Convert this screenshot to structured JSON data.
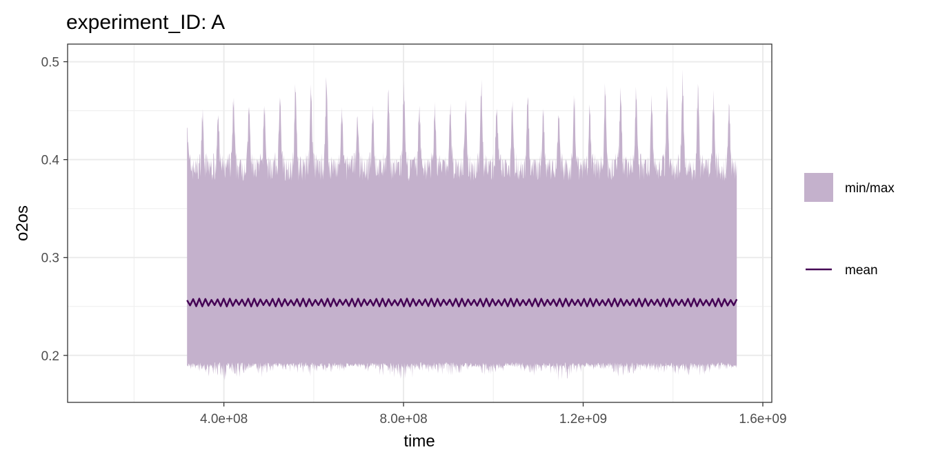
{
  "chart_data": {
    "type": "area",
    "title": "experiment_ID: A",
    "xlabel": "time",
    "ylabel": "o2os",
    "xlim": [
      52000000,
      1620000000
    ],
    "ylim": [
      0.152,
      0.518
    ],
    "xticks": [
      400000000,
      800000000,
      1200000000,
      1600000000
    ],
    "xtick_labels": [
      "4.0e+08",
      "8.0e+08",
      "1.2e+09",
      "1.6e+09"
    ],
    "yticks": [
      0.2,
      0.3,
      0.4,
      0.5
    ],
    "ytick_labels": [
      "0.2",
      "0.3",
      "0.4",
      "0.5"
    ],
    "grid": true,
    "legend_position": "right",
    "x_range": [
      318000000,
      1542000000
    ],
    "ribbon_color": "#c4b1cc",
    "line_color": "#440154",
    "series": [
      {
        "name": "min/max",
        "kind": "ribbon",
        "description_peaks": "daily cycle of ~36 peaks",
        "x": [
          318000000,
          345000000,
          380000000,
          415000000,
          450000000,
          485000000,
          520000000,
          555000000,
          590000000,
          625000000,
          660000000,
          695000000,
          730000000,
          765000000,
          800000000,
          835000000,
          870000000,
          905000000,
          940000000,
          975000000,
          1010000000,
          1045000000,
          1080000000,
          1115000000,
          1150000000,
          1185000000,
          1220000000,
          1255000000,
          1290000000,
          1325000000,
          1360000000,
          1395000000,
          1430000000,
          1465000000,
          1500000000,
          1542000000
        ],
        "ymax": [
          0.44,
          0.455,
          0.45,
          0.47,
          0.462,
          0.46,
          0.47,
          0.485,
          0.48,
          0.497,
          0.455,
          0.45,
          0.455,
          0.478,
          0.482,
          0.46,
          0.46,
          0.46,
          0.465,
          0.487,
          0.458,
          0.465,
          0.475,
          0.455,
          0.455,
          0.475,
          0.46,
          0.488,
          0.478,
          0.48,
          0.465,
          0.487,
          0.495,
          0.48,
          0.468,
          0.462
        ],
        "ymin": [
          0.19,
          0.185,
          0.18,
          0.172,
          0.185,
          0.18,
          0.19,
          0.185,
          0.18,
          0.186,
          0.185,
          0.19,
          0.185,
          0.18,
          0.173,
          0.186,
          0.185,
          0.178,
          0.186,
          0.18,
          0.185,
          0.19,
          0.18,
          0.186,
          0.175,
          0.183,
          0.187,
          0.185,
          0.178,
          0.188,
          0.185,
          0.183,
          0.182,
          0.183,
          0.186,
          0.19
        ]
      },
      {
        "name": "mean",
        "kind": "line",
        "description_values": "oscillates tightly around 0.254 with amplitude ~0.004",
        "y_center": 0.254,
        "y_amplitude": 0.004
      }
    ]
  }
}
